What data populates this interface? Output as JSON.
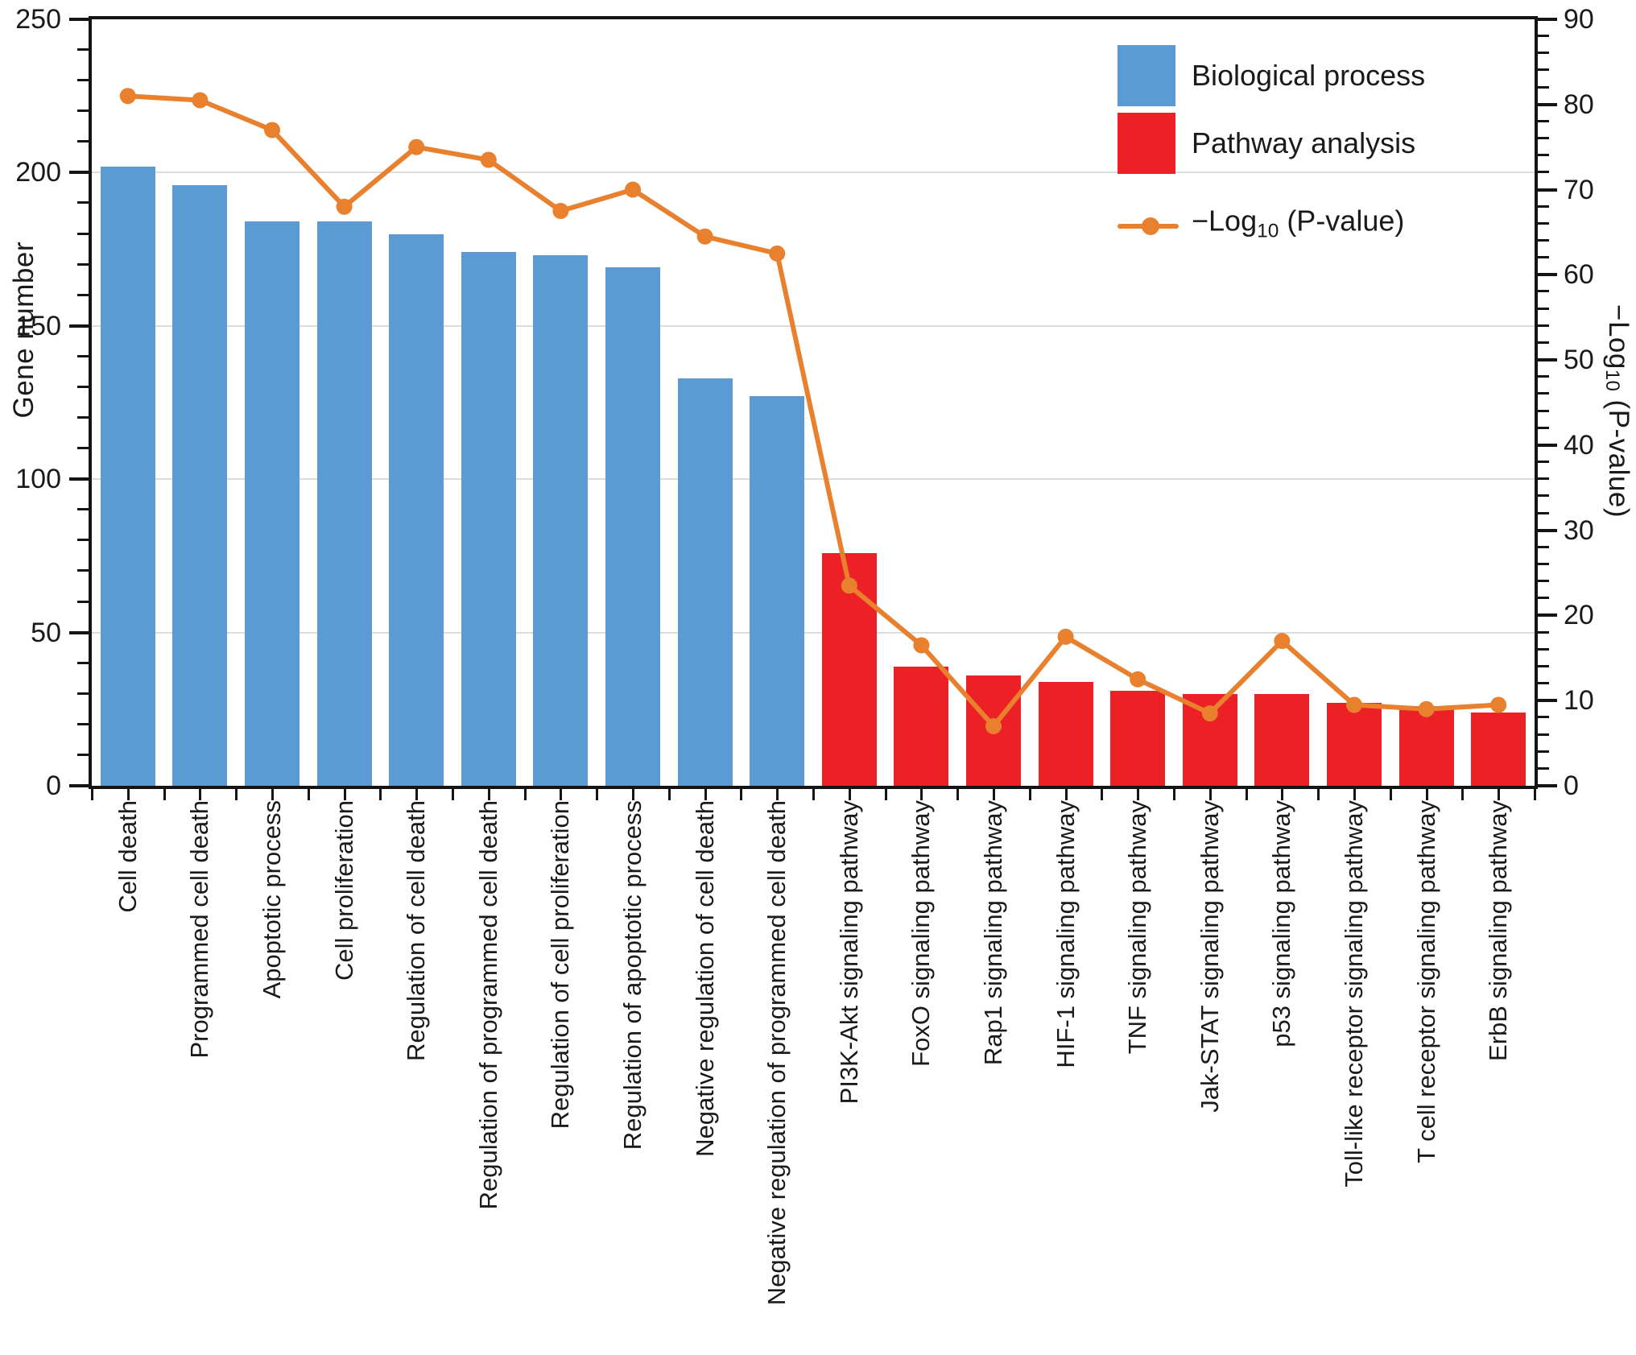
{
  "chart_data": {
    "type": "bar",
    "title": "",
    "categories": [
      "Cell death",
      "Programmed cell death",
      "Apoptotic process",
      "Cell proliferation",
      "Regulation of cell death",
      "Regulation of programmed cell death",
      "Regulation of cell proliferation",
      "Regulation of apoptotic process",
      "Negative regulation of cell death",
      "Negative regulation of programmed cell death",
      "PI3K-Akt signaling pathway",
      "FoxO signaling pathway",
      "Rap1 signaling pathway",
      "HIF-1 signaling pathway",
      "TNF signaling pathway",
      "Jak-STAT signaling pathway",
      "p53 signaling pathway",
      "Toll-like receptor signaling pathway",
      "T cell receptor signaling pathway",
      "ErbB signaling pathway"
    ],
    "category_groups": [
      "Biological process",
      "Biological process",
      "Biological process",
      "Biological process",
      "Biological process",
      "Biological process",
      "Biological process",
      "Biological process",
      "Biological process",
      "Biological process",
      "Pathway analysis",
      "Pathway analysis",
      "Pathway analysis",
      "Pathway analysis",
      "Pathway analysis",
      "Pathway analysis",
      "Pathway analysis",
      "Pathway analysis",
      "Pathway analysis",
      "Pathway analysis"
    ],
    "series": [
      {
        "name": "Gene number",
        "type": "bar",
        "axis": "left",
        "values": [
          202,
          196,
          184,
          184,
          180,
          174,
          173,
          169,
          133,
          127,
          76,
          39,
          36,
          34,
          31,
          30,
          30,
          27,
          26,
          24
        ]
      },
      {
        "name": "−Log10 (P-value)",
        "type": "line",
        "axis": "right",
        "values": [
          81,
          80.5,
          77,
          68,
          75,
          73.5,
          67.5,
          70,
          64.5,
          62.5,
          23.5,
          16.5,
          7,
          17.5,
          12.5,
          8.5,
          17,
          9.5,
          9,
          9.5
        ]
      }
    ],
    "axes": {
      "left": {
        "label": "Gene number",
        "min": 0,
        "max": 250,
        "ticks": [
          0,
          50,
          100,
          150,
          200,
          250
        ],
        "minor_step": 10
      },
      "right": {
        "label": "−Log10 (P-value)",
        "min": 0,
        "max": 90,
        "ticks": [
          0,
          10,
          20,
          30,
          40,
          50,
          60,
          70,
          80,
          90
        ],
        "minor_step": 2
      }
    },
    "grid": true,
    "legend_position": "top-right"
  },
  "colors": {
    "biological_process": "#5B9AD2",
    "pathway_analysis": "#EC2126",
    "line": "#E8802E",
    "grid": "#DCDCDC",
    "frame": "#141414"
  },
  "axis_titles": {
    "left": "Gene number",
    "right_prefix": "−Log",
    "right_sub": "10",
    "right_rest": " (P-value)"
  },
  "legend": {
    "items": [
      {
        "label": "Biological process",
        "type": "swatch",
        "color": "#5B9AD2"
      },
      {
        "label": "Pathway analysis",
        "type": "swatch",
        "color": "#EC2126"
      },
      {
        "label_prefix": "−Log",
        "label_sub": "10",
        "label_rest": " (P-value)",
        "type": "line",
        "color": "#E8802E"
      }
    ]
  }
}
